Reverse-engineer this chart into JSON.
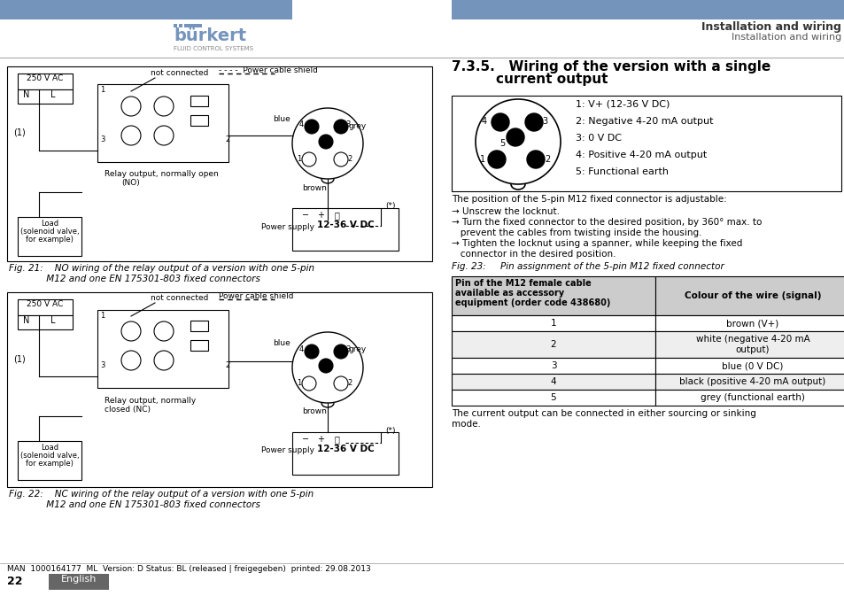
{
  "bg_color": "#ffffff",
  "header_blue": "#7494bc",
  "header_text_bold": "Installation and wiring",
  "header_text_normal": "Installation and wiring",
  "page_num": "22",
  "section_title_line1": "7.3.5.   Wiring of the version with a single",
  "section_title_line2": "current output",
  "fig21_caption_line1": "Fig. 21:    NO wiring of the relay output of a version with one 5-pin",
  "fig21_caption_line2": "             M12 and one EN 175301-803 fixed connectors",
  "fig22_caption_line1": "Fig. 22:    NC wiring of the relay output of a version with one 5-pin",
  "fig22_caption_line2": "             M12 and one EN 175301-803 fixed connectors",
  "fig23_caption": "Fig. 23:     Pin assignment of the 5-pin M12 fixed connector",
  "pin_labels": [
    "1: V+ (12-36 V DC)",
    "2: Negative 4-20 mA output",
    "3: 0 V DC",
    "4: Positive 4-20 mA output",
    "5: Functional earth"
  ],
  "connector_text": "The position of the 5-pin M12 fixed connector is adjustable:",
  "bullet1": "→ Unscrew the locknut.",
  "bullet2": "→ Turn the fixed connector to the desired position, by 360° max. to",
  "bullet2b": "   prevent the cables from twisting inside the housing.",
  "bullet3": "→ Tighten the locknut using a spanner, while keeping the fixed",
  "bullet3b": "   connector in the desired position.",
  "table_hdr1_line1": "Pin of the M12 female cable",
  "table_hdr1_line2": "available as accessory",
  "table_hdr1_line3": "equipment (order code 438680)",
  "table_hdr2": "Colour of the wire (signal)",
  "table_rows": [
    [
      "1",
      "brown (V+)"
    ],
    [
      "2",
      "white (negative 4-20 mA\noutput)"
    ],
    [
      "3",
      "blue (0 V DC)"
    ],
    [
      "4",
      "black (positive 4-20 mA output)"
    ],
    [
      "5",
      "grey (functional earth)"
    ]
  ],
  "footer_text": "MAN  1000164177  ML  Version: D Status: BL (released | freigegeben)  printed: 29.08.2013",
  "english_bg": "#666666",
  "english_text": "English"
}
